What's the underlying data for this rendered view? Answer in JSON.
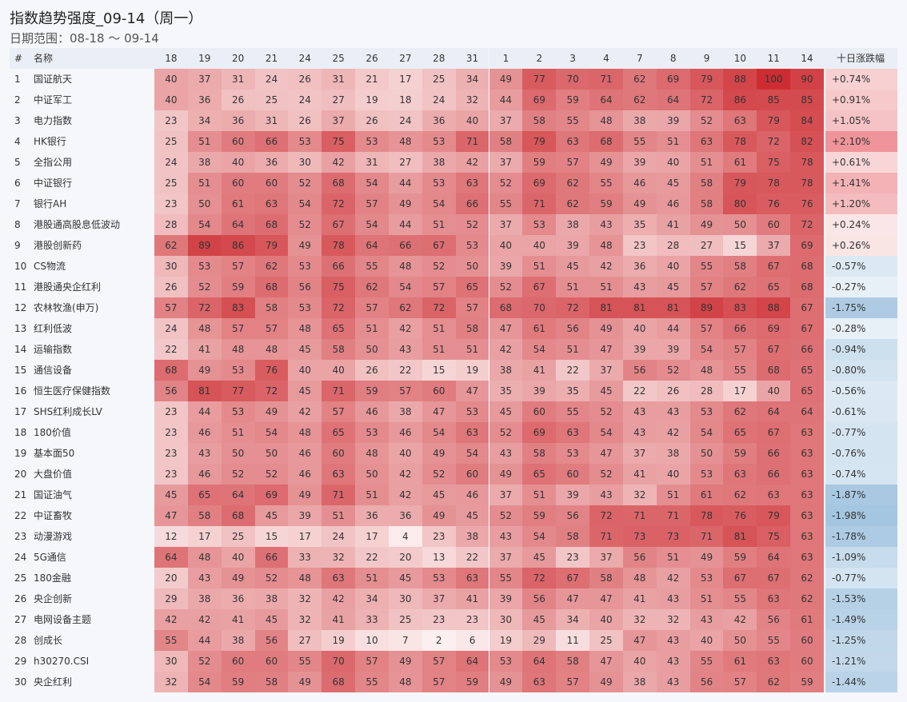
{
  "header": {
    "title": "指数趋势强度_09-14（周一）",
    "subtitle": "日期范围：08-18 ～ 09-14"
  },
  "table": {
    "columns": [
      "#",
      "名称",
      "18",
      "19",
      "20",
      "21",
      "24",
      "25",
      "26",
      "27",
      "28",
      "31",
      "1",
      "2",
      "3",
      "4",
      "7",
      "8",
      "9",
      "10",
      "11",
      "14",
      "十日涨跌幅"
    ],
    "rows": [
      {
        "no": 1,
        "name": "国证航天",
        "values": [
          40,
          37,
          31,
          24,
          26,
          31,
          21,
          17,
          25,
          34,
          49,
          77,
          70,
          71,
          62,
          69,
          79,
          88,
          100,
          90
        ],
        "change": "+0.74%"
      },
      {
        "no": 2,
        "name": "中证军工",
        "values": [
          40,
          36,
          26,
          25,
          24,
          27,
          19,
          18,
          24,
          32,
          44,
          69,
          59,
          64,
          62,
          64,
          72,
          86,
          85,
          85
        ],
        "change": "+0.91%"
      },
      {
        "no": 3,
        "name": "电力指数",
        "values": [
          23,
          34,
          36,
          31,
          26,
          37,
          26,
          24,
          36,
          40,
          37,
          58,
          55,
          48,
          38,
          39,
          52,
          63,
          79,
          84
        ],
        "change": "+1.05%"
      },
      {
        "no": 4,
        "name": "HK银行",
        "values": [
          25,
          51,
          60,
          66,
          53,
          75,
          53,
          48,
          53,
          71,
          58,
          79,
          63,
          68,
          55,
          51,
          63,
          78,
          72,
          82
        ],
        "change": "+2.10%"
      },
      {
        "no": 5,
        "name": "全指公用",
        "values": [
          24,
          38,
          40,
          36,
          30,
          42,
          31,
          27,
          38,
          42,
          37,
          59,
          57,
          49,
          39,
          40,
          51,
          61,
          75,
          78
        ],
        "change": "+0.61%"
      },
      {
        "no": 6,
        "name": "中证银行",
        "values": [
          25,
          51,
          60,
          60,
          52,
          68,
          54,
          44,
          53,
          63,
          52,
          69,
          62,
          55,
          46,
          45,
          58,
          79,
          78,
          78
        ],
        "change": "+1.41%"
      },
      {
        "no": 7,
        "name": "银行AH",
        "values": [
          23,
          50,
          61,
          63,
          54,
          72,
          57,
          49,
          54,
          66,
          55,
          71,
          62,
          59,
          49,
          46,
          58,
          80,
          76,
          76
        ],
        "change": "+1.20%"
      },
      {
        "no": 8,
        "name": "港股通高股息低波动",
        "values": [
          28,
          54,
          64,
          68,
          52,
          67,
          54,
          44,
          51,
          52,
          37,
          53,
          38,
          43,
          35,
          41,
          49,
          50,
          60,
          72
        ],
        "change": "+0.24%"
      },
      {
        "no": 9,
        "name": "港股创新药",
        "values": [
          62,
          89,
          86,
          79,
          49,
          78,
          64,
          66,
          67,
          53,
          40,
          40,
          39,
          48,
          23,
          28,
          27,
          15,
          37,
          69
        ],
        "change": "+0.26%"
      },
      {
        "no": 10,
        "name": "CS物流",
        "values": [
          30,
          53,
          57,
          62,
          53,
          66,
          55,
          48,
          52,
          50,
          39,
          51,
          45,
          42,
          36,
          40,
          55,
          58,
          67,
          68
        ],
        "change": "-0.57%"
      },
      {
        "no": 11,
        "name": "港股通央企红利",
        "values": [
          26,
          52,
          59,
          68,
          56,
          75,
          62,
          54,
          57,
          65,
          52,
          67,
          51,
          51,
          43,
          45,
          57,
          62,
          65,
          68
        ],
        "change": "-0.27%"
      },
      {
        "no": 12,
        "name": "农林牧渔(申万)",
        "values": [
          57,
          72,
          83,
          58,
          53,
          72,
          57,
          62,
          72,
          57,
          68,
          70,
          72,
          81,
          81,
          81,
          89,
          83,
          88,
          67
        ],
        "change": "-1.75%"
      },
      {
        "no": 13,
        "name": "红利低波",
        "values": [
          24,
          48,
          57,
          57,
          48,
          65,
          51,
          42,
          51,
          58,
          47,
          61,
          56,
          49,
          40,
          44,
          57,
          66,
          69,
          67
        ],
        "change": "-0.28%"
      },
      {
        "no": 14,
        "name": "运输指数",
        "values": [
          22,
          41,
          48,
          48,
          45,
          58,
          50,
          43,
          51,
          51,
          42,
          54,
          51,
          47,
          39,
          39,
          54,
          57,
          67,
          66
        ],
        "change": "-0.94%"
      },
      {
        "no": 15,
        "name": "通信设备",
        "values": [
          68,
          49,
          53,
          76,
          40,
          40,
          26,
          22,
          15,
          19,
          38,
          41,
          22,
          37,
          56,
          52,
          48,
          55,
          68,
          65
        ],
        "change": "-0.80%"
      },
      {
        "no": 16,
        "name": "恒生医疗保健指数",
        "values": [
          56,
          81,
          77,
          72,
          45,
          71,
          59,
          57,
          60,
          47,
          35,
          39,
          35,
          45,
          22,
          26,
          28,
          17,
          40,
          65
        ],
        "change": "-0.56%"
      },
      {
        "no": 17,
        "name": "SHS红利成长LV",
        "values": [
          23,
          44,
          53,
          49,
          42,
          57,
          46,
          38,
          47,
          53,
          45,
          60,
          55,
          52,
          43,
          43,
          53,
          62,
          64,
          64
        ],
        "change": "-0.61%"
      },
      {
        "no": 18,
        "name": "180价值",
        "values": [
          23,
          46,
          51,
          54,
          48,
          65,
          53,
          46,
          54,
          63,
          52,
          69,
          63,
          54,
          43,
          42,
          54,
          65,
          67,
          63
        ],
        "change": "-0.77%"
      },
      {
        "no": 19,
        "name": "基本面50",
        "values": [
          23,
          43,
          50,
          50,
          46,
          60,
          48,
          40,
          49,
          54,
          43,
          58,
          53,
          47,
          37,
          38,
          50,
          59,
          66,
          63
        ],
        "change": "-0.76%"
      },
      {
        "no": 20,
        "name": "大盘价值",
        "values": [
          23,
          46,
          52,
          52,
          46,
          63,
          50,
          42,
          52,
          60,
          49,
          65,
          60,
          52,
          41,
          40,
          53,
          63,
          66,
          63
        ],
        "change": "-0.74%"
      },
      {
        "no": 21,
        "name": "国证油气",
        "values": [
          45,
          65,
          64,
          69,
          49,
          71,
          51,
          42,
          45,
          46,
          37,
          51,
          39,
          43,
          32,
          51,
          61,
          62,
          63,
          63
        ],
        "change": "-1.87%"
      },
      {
        "no": 22,
        "name": "中证畜牧",
        "values": [
          47,
          58,
          68,
          45,
          39,
          51,
          36,
          36,
          49,
          45,
          52,
          59,
          56,
          72,
          71,
          71,
          78,
          76,
          79,
          63
        ],
        "change": "-1.98%"
      },
      {
        "no": 23,
        "name": "动漫游戏",
        "values": [
          12,
          17,
          25,
          15,
          17,
          24,
          17,
          4,
          23,
          38,
          43,
          54,
          58,
          71,
          73,
          73,
          71,
          81,
          75,
          63
        ],
        "change": "-1.78%"
      },
      {
        "no": 24,
        "name": "5G通信",
        "values": [
          64,
          48,
          40,
          66,
          33,
          32,
          22,
          20,
          13,
          22,
          37,
          45,
          23,
          37,
          56,
          51,
          49,
          59,
          64,
          63
        ],
        "change": "-1.09%"
      },
      {
        "no": 25,
        "name": "180金融",
        "values": [
          20,
          43,
          49,
          52,
          48,
          63,
          51,
          45,
          53,
          63,
          55,
          72,
          67,
          58,
          48,
          42,
          53,
          67,
          67,
          62
        ],
        "change": "-0.77%"
      },
      {
        "no": 26,
        "name": "央企创新",
        "values": [
          29,
          38,
          36,
          38,
          32,
          42,
          34,
          30,
          37,
          41,
          39,
          56,
          47,
          47,
          41,
          43,
          51,
          55,
          63,
          62
        ],
        "change": "-1.53%"
      },
      {
        "no": 27,
        "name": "电网设备主题",
        "values": [
          42,
          42,
          41,
          45,
          32,
          41,
          33,
          25,
          23,
          23,
          30,
          45,
          34,
          40,
          32,
          32,
          43,
          42,
          56,
          61
        ],
        "change": "-1.49%"
      },
      {
        "no": 28,
        "name": "创成长",
        "values": [
          55,
          44,
          38,
          56,
          27,
          19,
          10,
          7,
          2,
          6,
          19,
          29,
          11,
          25,
          47,
          43,
          40,
          50,
          55,
          60
        ],
        "change": "-1.25%"
      },
      {
        "no": 29,
        "name": "h30270.CSI",
        "values": [
          30,
          52,
          60,
          60,
          55,
          70,
          57,
          49,
          57,
          64,
          53,
          64,
          58,
          47,
          40,
          43,
          55,
          61,
          63,
          60
        ],
        "change": "-1.21%"
      },
      {
        "no": 30,
        "name": "央企红利",
        "values": [
          32,
          54,
          59,
          58,
          49,
          68,
          55,
          48,
          57,
          59,
          49,
          63,
          57,
          49,
          38,
          43,
          56,
          57,
          62,
          59
        ],
        "change": "-1.44%"
      }
    ]
  }
}
